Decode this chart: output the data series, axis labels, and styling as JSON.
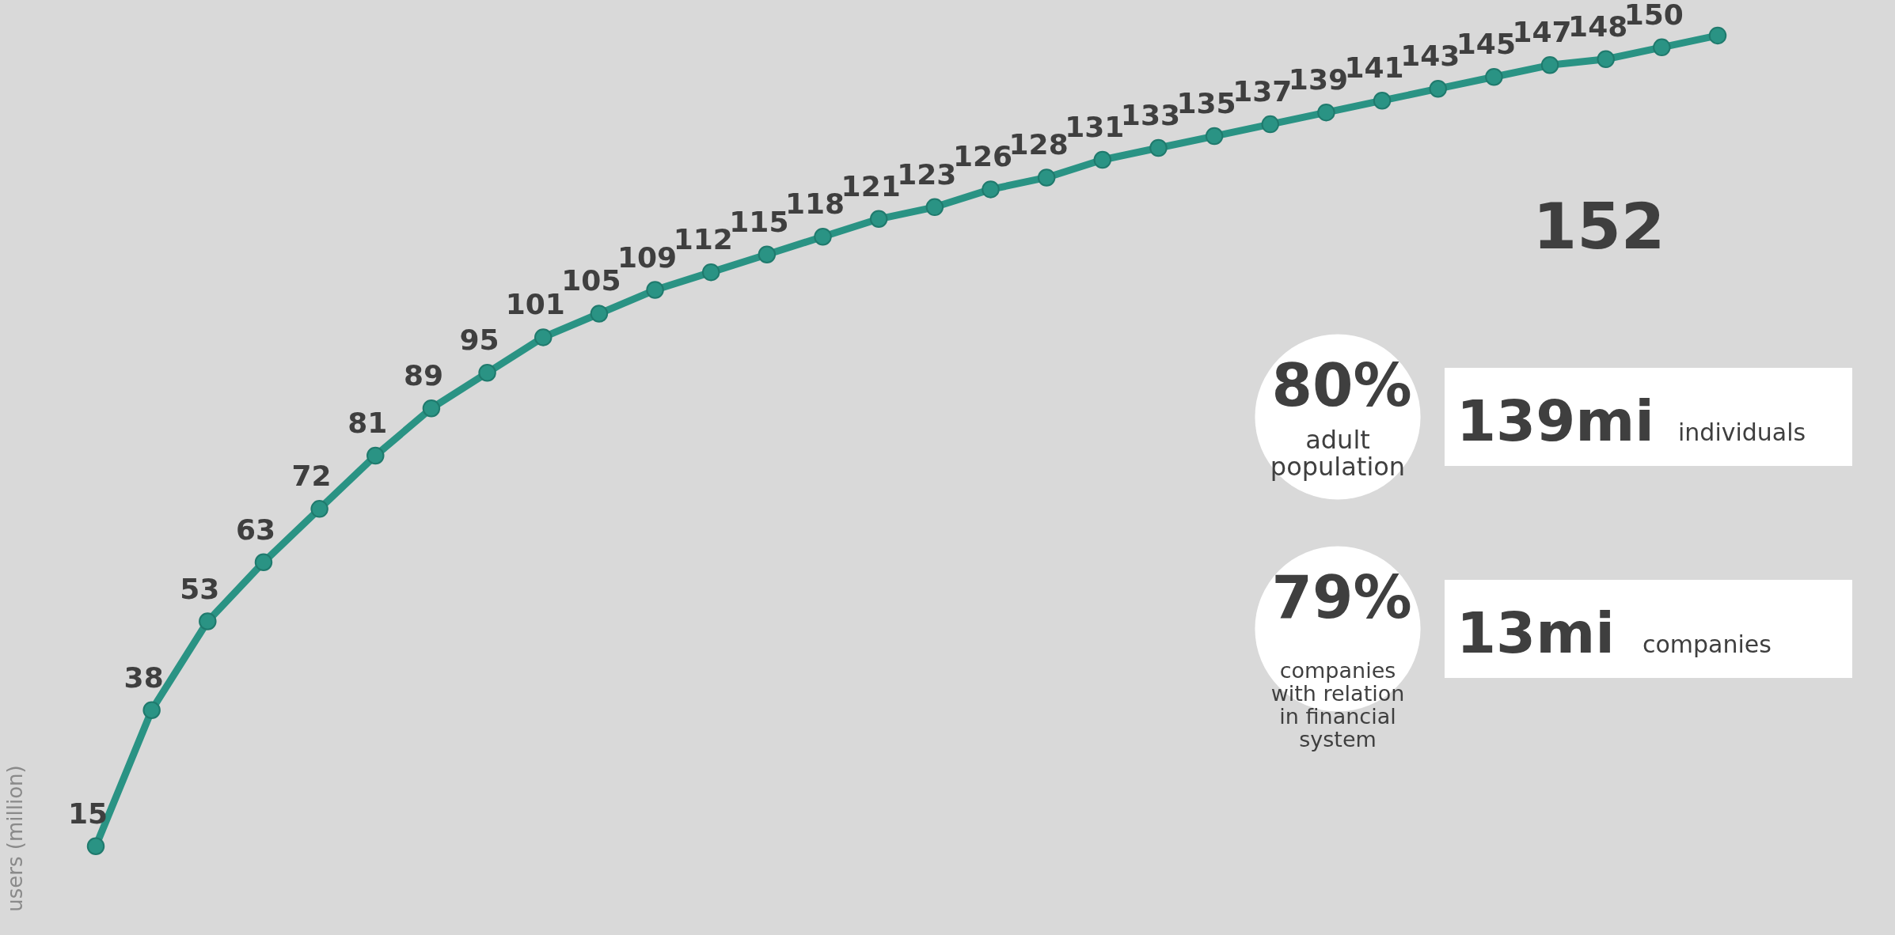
{
  "chart_data": {
    "type": "line",
    "ylabel": "users (million)",
    "categories": [
      null,
      null,
      null,
      null,
      null,
      null,
      null,
      null,
      null,
      null,
      null,
      null,
      null,
      null,
      null,
      null,
      null,
      null,
      null,
      null,
      null,
      null,
      null,
      null,
      null,
      null,
      null,
      null,
      null,
      null
    ],
    "series": [
      {
        "color": "#2a9384",
        "values": [
          15,
          38,
          53,
          63,
          72,
          81,
          89,
          95,
          101,
          105,
          109,
          112,
          115,
          118,
          121,
          123,
          126,
          128,
          131,
          133,
          135,
          137,
          139,
          141,
          143,
          145,
          147,
          148,
          150,
          152
        ]
      }
    ],
    "ylim": [
      0,
      158
    ],
    "relative": false,
    "data_labels": true,
    "marker": "circle",
    "line_style": "solid",
    "tick_labels": false,
    "annotations": [
      "80%",
      "adult\npopulation",
      "139mi",
      "individuals",
      "79%",
      "companies\nwith relation\nin financial\nsystem",
      "13mi",
      "companies"
    ]
  }
}
